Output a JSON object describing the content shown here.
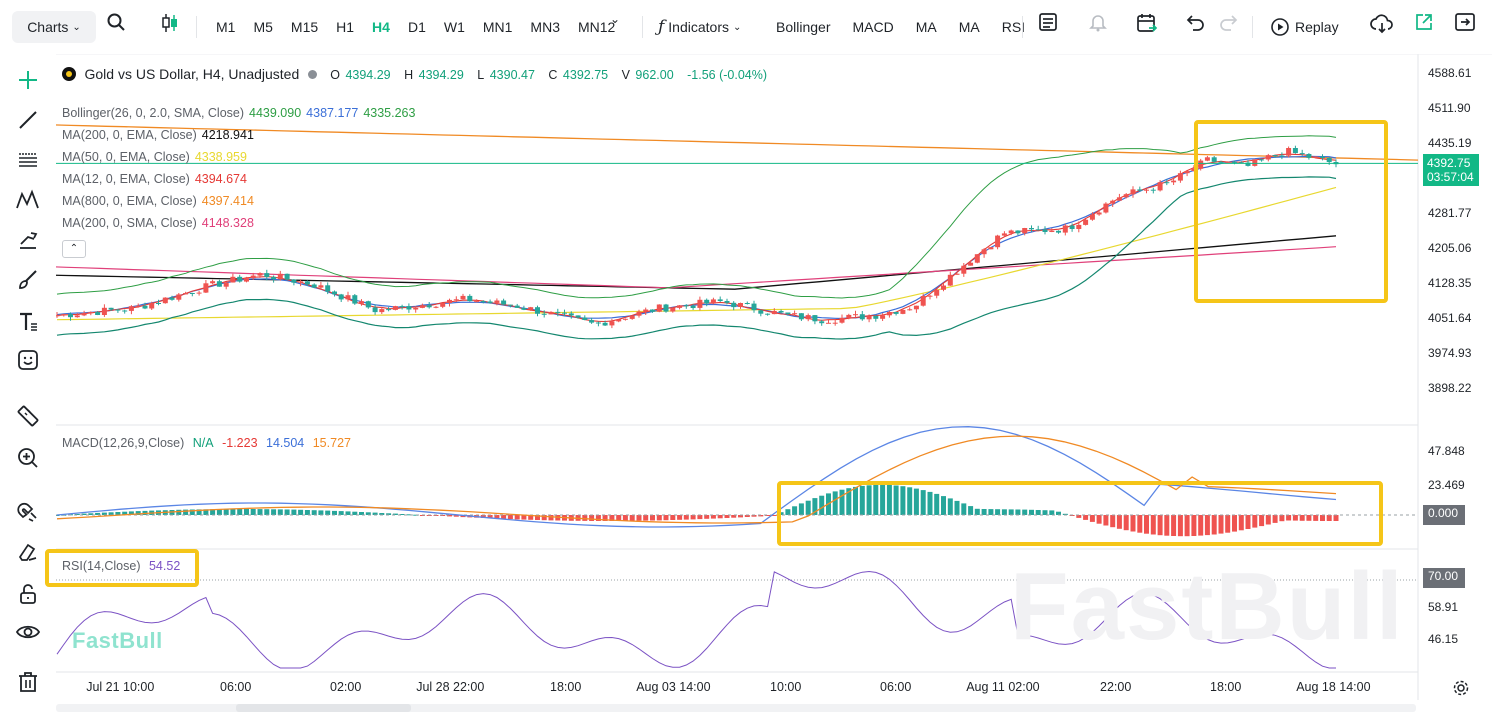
{
  "toolbar": {
    "charts_label": "Charts",
    "timeframes": [
      "M1",
      "M5",
      "M15",
      "H1",
      "H4",
      "D1",
      "W1",
      "MN1",
      "MN3",
      "MN12"
    ],
    "active_timeframe": "H4",
    "indicators_label": "Indicators",
    "indicator_shortcuts": [
      "Bollinger",
      "MACD",
      "MA",
      "MA",
      "RSI"
    ],
    "replay_label": "Replay"
  },
  "sidebar": {
    "tools": [
      "crosshair-icon",
      "trend-line-icon",
      "horizontal-lines-icon",
      "pattern-icon",
      "projection-icon",
      "brush-icon",
      "text-icon",
      "emoji-icon",
      "ruler-icon",
      "zoom-in-icon",
      "magnet-icon",
      "eraser-icon",
      "lock-icon",
      "eye-icon",
      "trash-icon"
    ]
  },
  "symbol": {
    "title": "Gold vs US Dollar, H4, Unadjusted",
    "o_label": "O",
    "o": "4394.29",
    "h_label": "H",
    "h": "4394.29",
    "l_label": "L",
    "l": "4390.47",
    "c_label": "C",
    "c": "4392.75",
    "v_label": "V",
    "v": "962.00",
    "change": "-1.56 (-0.04%)"
  },
  "indicators": [
    {
      "name": "Bollinger(26, 0, 2.0, SMA, Close)",
      "values": [
        "4439.090",
        "4387.177",
        "4335.263"
      ],
      "colors": [
        "#2e9e44",
        "#3b6fd8",
        "#2e9e44"
      ]
    },
    {
      "name": "MA(200, 0, EMA, Close)",
      "values": [
        "4218.941"
      ],
      "colors": [
        "#111111"
      ]
    },
    {
      "name": "MA(50, 0, EMA, Close)",
      "values": [
        "4338.959"
      ],
      "colors": [
        "#e8d830"
      ]
    },
    {
      "name": "MA(12, 0, EMA, Close)",
      "values": [
        "4394.674"
      ],
      "colors": [
        "#e53935"
      ]
    },
    {
      "name": "MA(800, 0, EMA, Close)",
      "values": [
        "4397.414"
      ],
      "colors": [
        "#f08a24"
      ]
    },
    {
      "name": "MA(200, 0, SMA, Close)",
      "values": [
        "4148.328"
      ],
      "colors": [
        "#e0407a"
      ]
    }
  ],
  "macd": {
    "name": "MACD(12,26,9,Close)",
    "na": "N/A",
    "values": [
      "-1.223",
      "14.504",
      "15.727"
    ]
  },
  "rsi": {
    "name": "RSI(14,Close)",
    "value": "54.52"
  },
  "price_axis": [
    "4588.61",
    "4511.90",
    "4435.19",
    "4281.77",
    "4205.06",
    "4128.35",
    "4051.64",
    "3974.93",
    "3898.22"
  ],
  "current_price": "4392.75",
  "countdown": "03:57:04",
  "macd_axis": [
    "47.848",
    "23.469",
    "0.000"
  ],
  "rsi_axis": [
    "70.00",
    "58.91",
    "46.15"
  ],
  "time_axis": [
    "Jul 21 10:00",
    "06:00",
    "02:00",
    "Jul 28 22:00",
    "18:00",
    "Aug 03 14:00",
    "10:00",
    "06:00",
    "Aug 11 02:00",
    "22:00",
    "18:00",
    "Aug 18 14:00"
  ],
  "watermark": "FastBull",
  "brand": "FastBull",
  "colors": {
    "up": "#26a69a",
    "down": "#ef5350",
    "accent": "#12b886",
    "highlight": "#f5c518"
  }
}
